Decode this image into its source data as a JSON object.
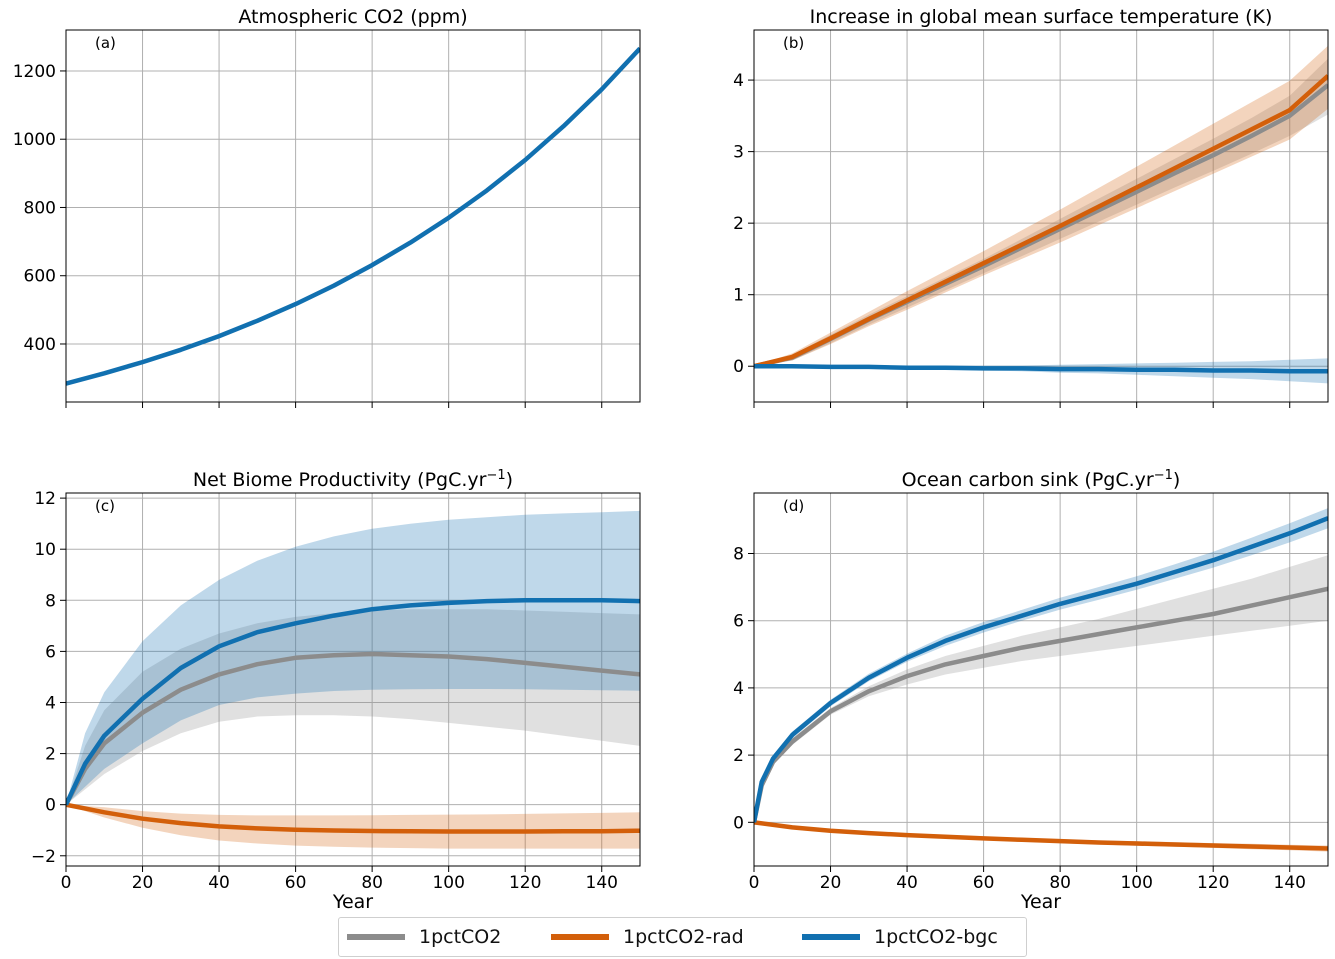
{
  "legend": {
    "items": [
      {
        "label": "1pctCO2",
        "color": "#8c8c8c"
      },
      {
        "label": "1pctCO2-rad",
        "color": "#d35f0a"
      },
      {
        "label": "1pctCO2-bgc",
        "color": "#1170b0"
      }
    ]
  },
  "chart_data": [
    {
      "type": "line",
      "panel_label": "(a)",
      "title": "Atmospheric CO2 (ppm)",
      "xlabel": "",
      "ylabel": "",
      "xlim": [
        0,
        150
      ],
      "ylim": [
        230,
        1320
      ],
      "xticks": [
        0,
        20,
        40,
        60,
        80,
        100,
        120,
        140
      ],
      "yticks": [
        400,
        600,
        800,
        1000,
        1200
      ],
      "grid": true,
      "show_x_ticklabels": false,
      "series": [
        {
          "name": "1pctCO2-bgc",
          "color": "#1170b0",
          "x": [
            0,
            10,
            20,
            30,
            40,
            50,
            60,
            70,
            80,
            90,
            100,
            110,
            120,
            130,
            140,
            150
          ],
          "values": [
            284,
            314,
            347,
            383,
            423,
            468,
            517,
            571,
            631,
            697,
            770,
            850,
            939,
            1038,
            1146,
            1266
          ]
        }
      ]
    },
    {
      "type": "line",
      "panel_label": "(b)",
      "title": "Increase in global mean surface temperature (K)",
      "xlabel": "",
      "ylabel": "",
      "xlim": [
        0,
        150
      ],
      "ylim": [
        -0.5,
        4.7
      ],
      "xticks": [
        0,
        20,
        40,
        60,
        80,
        100,
        120,
        140
      ],
      "yticks": [
        0,
        1,
        2,
        3,
        4
      ],
      "grid": true,
      "show_x_ticklabels": false,
      "series": [
        {
          "name": "1pctCO2",
          "color": "#8c8c8c",
          "x": [
            0,
            10,
            20,
            30,
            40,
            50,
            60,
            70,
            80,
            90,
            100,
            110,
            120,
            130,
            140,
            150
          ],
          "values": [
            0,
            0.12,
            0.38,
            0.65,
            0.9,
            1.15,
            1.4,
            1.66,
            1.92,
            2.18,
            2.44,
            2.7,
            2.95,
            3.22,
            3.5,
            3.93
          ],
          "lower": [
            0,
            0.08,
            0.32,
            0.58,
            0.82,
            1.06,
            1.3,
            1.54,
            1.78,
            2.02,
            2.26,
            2.5,
            2.73,
            2.97,
            3.22,
            3.52
          ],
          "upper": [
            0,
            0.16,
            0.44,
            0.72,
            0.98,
            1.24,
            1.5,
            1.78,
            2.06,
            2.34,
            2.62,
            2.9,
            3.18,
            3.47,
            3.78,
            4.3
          ]
        },
        {
          "name": "1pctCO2-rad",
          "color": "#d35f0a",
          "x": [
            0,
            10,
            20,
            30,
            40,
            50,
            60,
            70,
            80,
            90,
            100,
            110,
            120,
            130,
            140,
            150
          ],
          "values": [
            0,
            0.13,
            0.39,
            0.66,
            0.92,
            1.18,
            1.44,
            1.7,
            1.96,
            2.23,
            2.5,
            2.77,
            3.04,
            3.31,
            3.58,
            4.06
          ],
          "lower": [
            0,
            0.08,
            0.31,
            0.56,
            0.79,
            1.03,
            1.27,
            1.5,
            1.73,
            1.97,
            2.21,
            2.45,
            2.69,
            2.93,
            3.17,
            3.6
          ],
          "upper": [
            0,
            0.18,
            0.47,
            0.76,
            1.05,
            1.33,
            1.61,
            1.9,
            2.19,
            2.49,
            2.79,
            3.09,
            3.39,
            3.69,
            3.99,
            4.48
          ]
        },
        {
          "name": "1pctCO2-bgc",
          "color": "#1170b0",
          "x": [
            0,
            10,
            20,
            30,
            40,
            50,
            60,
            70,
            80,
            90,
            100,
            110,
            120,
            130,
            140,
            150
          ],
          "values": [
            0,
            0,
            -0.01,
            -0.01,
            -0.02,
            -0.02,
            -0.03,
            -0.03,
            -0.04,
            -0.04,
            -0.05,
            -0.05,
            -0.06,
            -0.06,
            -0.07,
            -0.07
          ],
          "lower": [
            0,
            -0.01,
            -0.02,
            -0.03,
            -0.04,
            -0.05,
            -0.06,
            -0.07,
            -0.09,
            -0.1,
            -0.12,
            -0.14,
            -0.16,
            -0.18,
            -0.21,
            -0.24
          ],
          "upper": [
            0,
            0.01,
            0.01,
            0.01,
            0.01,
            0.01,
            0.01,
            0.01,
            0.02,
            0.03,
            0.04,
            0.05,
            0.06,
            0.07,
            0.09,
            0.11
          ]
        }
      ]
    },
    {
      "type": "line",
      "panel_label": "(c)",
      "title": "Net Biome Productivity (PgC.yr",
      "title_sup": "−1",
      "title_end": ")",
      "xlabel": "Year",
      "ylabel": "",
      "xlim": [
        0,
        150
      ],
      "ylim": [
        -2.4,
        12.2
      ],
      "xticks": [
        0,
        20,
        40,
        60,
        80,
        100,
        120,
        140
      ],
      "yticks": [
        -2,
        0,
        2,
        4,
        6,
        8,
        10,
        12
      ],
      "ytick_labels": [
        "−2",
        "0",
        "2",
        "4",
        "6",
        "8",
        "10",
        "12"
      ],
      "grid": true,
      "show_x_ticklabels": true,
      "series": [
        {
          "name": "1pctCO2",
          "color": "#8c8c8c",
          "x": [
            0,
            5,
            10,
            20,
            30,
            40,
            50,
            60,
            70,
            80,
            90,
            100,
            110,
            120,
            130,
            140,
            150
          ],
          "values": [
            0,
            1.4,
            2.4,
            3.6,
            4.5,
            5.1,
            5.5,
            5.75,
            5.85,
            5.9,
            5.85,
            5.8,
            5.7,
            5.55,
            5.4,
            5.25,
            5.1
          ],
          "lower": [
            0,
            0.6,
            1.2,
            2.1,
            2.8,
            3.25,
            3.45,
            3.5,
            3.5,
            3.45,
            3.35,
            3.2,
            3.05,
            2.9,
            2.7,
            2.5,
            2.3
          ],
          "upper": [
            0,
            2.3,
            3.7,
            5.2,
            6.1,
            6.7,
            7.1,
            7.35,
            7.5,
            7.6,
            7.65,
            7.65,
            7.65,
            7.6,
            7.55,
            7.5,
            7.45
          ]
        },
        {
          "name": "1pctCO2-rad",
          "color": "#d35f0a",
          "x": [
            0,
            10,
            20,
            30,
            40,
            50,
            60,
            70,
            80,
            90,
            100,
            110,
            120,
            130,
            140,
            150
          ],
          "values": [
            0,
            -0.3,
            -0.55,
            -0.72,
            -0.85,
            -0.93,
            -0.98,
            -1.01,
            -1.03,
            -1.04,
            -1.05,
            -1.05,
            -1.05,
            -1.04,
            -1.04,
            -1.02
          ],
          "lower": [
            0,
            -0.5,
            -0.9,
            -1.2,
            -1.4,
            -1.52,
            -1.6,
            -1.65,
            -1.68,
            -1.7,
            -1.72,
            -1.72,
            -1.72,
            -1.72,
            -1.72,
            -1.72
          ],
          "upper": [
            0,
            -0.1,
            -0.25,
            -0.35,
            -0.4,
            -0.42,
            -0.42,
            -0.42,
            -0.41,
            -0.4,
            -0.39,
            -0.38,
            -0.36,
            -0.34,
            -0.32,
            -0.3
          ]
        },
        {
          "name": "1pctCO2-bgc",
          "color": "#1170b0",
          "x": [
            0,
            5,
            10,
            20,
            30,
            40,
            50,
            60,
            70,
            80,
            90,
            100,
            110,
            120,
            130,
            140,
            150
          ],
          "values": [
            0,
            1.6,
            2.7,
            4.15,
            5.35,
            6.2,
            6.75,
            7.1,
            7.4,
            7.65,
            7.8,
            7.9,
            7.97,
            8.0,
            8.0,
            8.0,
            7.97
          ],
          "lower": [
            0,
            0.7,
            1.4,
            2.4,
            3.3,
            3.9,
            4.2,
            4.35,
            4.45,
            4.5,
            4.52,
            4.53,
            4.53,
            4.52,
            4.5,
            4.48,
            4.46
          ],
          "upper": [
            0,
            2.8,
            4.4,
            6.4,
            7.8,
            8.8,
            9.55,
            10.1,
            10.5,
            10.8,
            11.0,
            11.15,
            11.25,
            11.35,
            11.4,
            11.45,
            11.5
          ]
        }
      ]
    },
    {
      "type": "line",
      "panel_label": "(d)",
      "title": "Ocean carbon sink (PgC.yr",
      "title_sup": "−1",
      "title_end": ")",
      "xlabel": "Year",
      "ylabel": "",
      "xlim": [
        0,
        150
      ],
      "ylim": [
        -1.3,
        9.8
      ],
      "xticks": [
        0,
        20,
        40,
        60,
        80,
        100,
        120,
        140
      ],
      "yticks": [
        0,
        2,
        4,
        6,
        8
      ],
      "grid": true,
      "show_x_ticklabels": true,
      "series": [
        {
          "name": "1pctCO2",
          "color": "#8c8c8c",
          "x": [
            0,
            2,
            5,
            10,
            20,
            30,
            40,
            50,
            60,
            70,
            80,
            90,
            100,
            110,
            120,
            130,
            140,
            150
          ],
          "values": [
            0,
            1.1,
            1.8,
            2.4,
            3.3,
            3.9,
            4.35,
            4.7,
            4.95,
            5.2,
            5.4,
            5.6,
            5.8,
            6.0,
            6.2,
            6.45,
            6.7,
            6.95
          ],
          "lower": [
            0,
            1.0,
            1.7,
            2.3,
            3.2,
            3.75,
            4.1,
            4.4,
            4.6,
            4.8,
            4.95,
            5.1,
            5.25,
            5.4,
            5.55,
            5.7,
            5.85,
            6.0
          ],
          "upper": [
            0,
            1.2,
            1.9,
            2.5,
            3.4,
            4.05,
            4.55,
            4.95,
            5.25,
            5.55,
            5.8,
            6.05,
            6.35,
            6.65,
            6.95,
            7.25,
            7.6,
            7.95
          ]
        },
        {
          "name": "1pctCO2-rad",
          "color": "#d35f0a",
          "x": [
            0,
            10,
            20,
            30,
            40,
            50,
            60,
            70,
            80,
            90,
            100,
            110,
            120,
            130,
            140,
            150
          ],
          "values": [
            0,
            -0.15,
            -0.25,
            -0.32,
            -0.38,
            -0.43,
            -0.48,
            -0.52,
            -0.56,
            -0.6,
            -0.63,
            -0.66,
            -0.69,
            -0.72,
            -0.75,
            -0.78
          ],
          "lower": [
            0,
            -0.17,
            -0.28,
            -0.36,
            -0.42,
            -0.48,
            -0.53,
            -0.57,
            -0.62,
            -0.66,
            -0.7,
            -0.73,
            -0.76,
            -0.8,
            -0.83,
            -0.87
          ],
          "upper": [
            0,
            -0.13,
            -0.22,
            -0.28,
            -0.34,
            -0.38,
            -0.43,
            -0.47,
            -0.5,
            -0.54,
            -0.56,
            -0.59,
            -0.62,
            -0.64,
            -0.67,
            -0.69
          ]
        },
        {
          "name": "1pctCO2-bgc",
          "color": "#1170b0",
          "x": [
            0,
            2,
            5,
            10,
            20,
            30,
            40,
            50,
            60,
            70,
            80,
            90,
            100,
            110,
            120,
            130,
            140,
            150
          ],
          "values": [
            0,
            1.2,
            1.9,
            2.6,
            3.55,
            4.3,
            4.9,
            5.4,
            5.8,
            6.15,
            6.5,
            6.8,
            7.1,
            7.45,
            7.8,
            8.2,
            8.6,
            9.05
          ],
          "lower": [
            0,
            1.15,
            1.85,
            2.5,
            3.45,
            4.2,
            4.78,
            5.25,
            5.65,
            6.0,
            6.33,
            6.62,
            6.92,
            7.25,
            7.58,
            7.95,
            8.33,
            8.75
          ],
          "upper": [
            0,
            1.25,
            1.95,
            2.7,
            3.65,
            4.42,
            5.02,
            5.55,
            5.96,
            6.32,
            6.68,
            7.0,
            7.32,
            7.68,
            8.05,
            8.47,
            8.9,
            9.35
          ]
        }
      ]
    }
  ]
}
